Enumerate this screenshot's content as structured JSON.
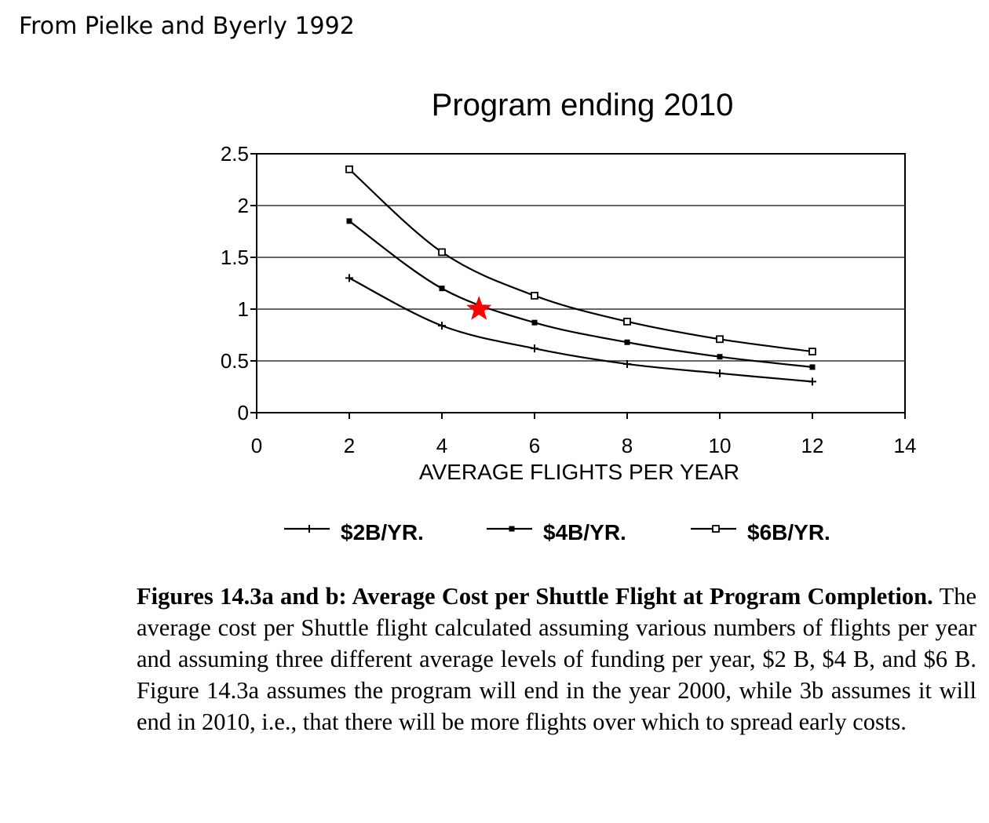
{
  "source_note": "From Pielke and Byerly 1992",
  "chart_data": {
    "type": "line",
    "title": "Program ending 2010",
    "xlabel": "AVERAGE FLIGHTS PER YEAR",
    "ylabel": "",
    "xlim": [
      0,
      14
    ],
    "ylim": [
      0,
      2.5
    ],
    "x_ticks": [
      "0",
      "2",
      "4",
      "6",
      "8",
      "10",
      "12",
      "14"
    ],
    "y_ticks": [
      "0",
      "0.5",
      "1",
      "1.5",
      "2",
      "2.5"
    ],
    "grid": "horizontal",
    "legend_position": "bottom",
    "x": [
      2,
      4,
      6,
      8,
      10,
      12
    ],
    "series": [
      {
        "name": "$2B/YR.",
        "marker": "plus",
        "values": [
          1.3,
          0.84,
          0.62,
          0.47,
          0.38,
          0.3
        ]
      },
      {
        "name": "$4B/YR.",
        "marker": "filled-square",
        "values": [
          1.85,
          1.2,
          0.87,
          0.68,
          0.54,
          0.44
        ]
      },
      {
        "name": "$6B/YR.",
        "marker": "open-square",
        "values": [
          2.35,
          1.55,
          1.13,
          0.88,
          0.71,
          0.59
        ]
      }
    ],
    "annotation": {
      "marker": "star",
      "color": "#ff0000",
      "x": 4.8,
      "y": 1.0
    }
  },
  "caption": {
    "lead": "Figures 14.3a and b: Average Cost per Shuttle Flight at Program Completion.",
    "body": " The average cost per Shuttle flight calculated assuming various numbers of flights per year and assuming three different average levels of funding per year, $2 B, $4 B, and $6 B. Figure 14.3a assumes the program will end in the year 2000, while 3b assumes it will end in 2010, i.e., that there will be more flights over which to spread early costs."
  }
}
